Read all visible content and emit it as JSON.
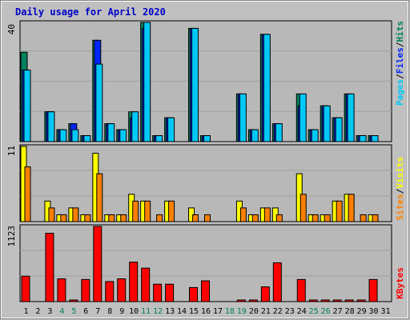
{
  "chart_data": [
    {
      "type": "bar",
      "title": "Daily usage for April 2020",
      "ymax_label": "40",
      "ymax": 40,
      "right_label_parts": [
        "Pages",
        "/",
        "Files",
        "/",
        "Hits"
      ],
      "categories": [
        "1",
        "2",
        "3",
        "4",
        "5",
        "6",
        "7",
        "8",
        "9",
        "10",
        "11",
        "12",
        "13",
        "14",
        "15",
        "16",
        "17",
        "18",
        "19",
        "20",
        "21",
        "22",
        "23",
        "24",
        "25",
        "26",
        "27",
        "28",
        "29",
        "30",
        "31"
      ],
      "weekend_days": [
        "4",
        "5",
        "11",
        "12",
        "18",
        "19",
        "25",
        "26"
      ],
      "series": [
        {
          "name": "Hits",
          "color": "#00805c",
          "values": [
            30,
            0,
            10,
            4,
            6,
            2,
            34,
            6,
            4,
            10,
            40,
            2,
            8,
            0,
            38,
            2,
            0,
            0,
            16,
            4,
            36,
            6,
            0,
            16,
            4,
            12,
            8,
            16,
            2,
            2,
            0
          ]
        },
        {
          "name": "Files",
          "color": "#0024ff",
          "values": [
            24,
            0,
            10,
            4,
            6,
            2,
            34,
            6,
            4,
            8,
            38,
            2,
            8,
            0,
            38,
            2,
            0,
            0,
            16,
            4,
            36,
            6,
            0,
            12,
            4,
            12,
            8,
            16,
            2,
            2,
            0
          ]
        },
        {
          "name": "Pages",
          "color": "#00c8f8",
          "values": [
            24,
            0,
            10,
            4,
            4,
            2,
            26,
            6,
            4,
            10,
            40,
            2,
            8,
            0,
            38,
            2,
            0,
            0,
            16,
            4,
            36,
            6,
            0,
            16,
            4,
            12,
            8,
            16,
            2,
            2,
            0
          ]
        }
      ]
    },
    {
      "type": "bar",
      "ymax_label": "11",
      "ymax": 11,
      "right_label_parts": [
        "Sites",
        "/",
        "Visits"
      ],
      "series": [
        {
          "name": "Visits",
          "color": "#ffff00",
          "values": [
            11,
            0,
            3,
            1,
            2,
            1,
            10,
            1,
            1,
            4,
            3,
            0,
            3,
            0,
            2,
            0,
            0,
            0,
            3,
            1,
            2,
            2,
            0,
            7,
            1,
            1,
            3,
            4,
            0,
            1,
            0
          ]
        },
        {
          "name": "Sites",
          "color": "#ff8000",
          "values": [
            8,
            0,
            2,
            1,
            2,
            1,
            7,
            1,
            1,
            3,
            3,
            1,
            3,
            0,
            1,
            1,
            0,
            0,
            2,
            1,
            2,
            1,
            0,
            4,
            1,
            1,
            3,
            4,
            1,
            1,
            0
          ]
        }
      ]
    },
    {
      "type": "bar",
      "ymax_label": "1123",
      "ymax": 1123,
      "right_label_parts": [
        "KBytes"
      ],
      "series": [
        {
          "name": "KBytes",
          "color": "#ff0000",
          "values": [
            380,
            0,
            1020,
            340,
            20,
            330,
            1123,
            300,
            340,
            590,
            500,
            260,
            260,
            0,
            210,
            310,
            0,
            0,
            10,
            10,
            220,
            580,
            0,
            330,
            10,
            10,
            20,
            10,
            10,
            330,
            0
          ]
        }
      ]
    }
  ]
}
